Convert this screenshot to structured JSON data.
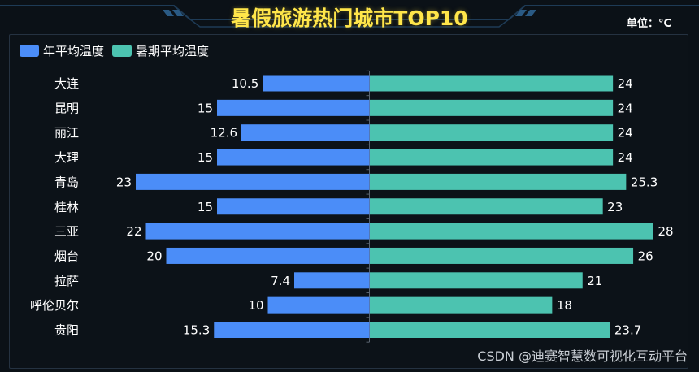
{
  "title": "暑假旅游热门城市TOP10",
  "unit": "单位：°C",
  "watermark": "CSDN @迪赛智慧数可视化互动平台",
  "colors": {
    "left": "#4b8df8",
    "right": "#4cc3b0",
    "title": "#ffe64a"
  },
  "chart_data": {
    "type": "bar",
    "orientation": "horizontal-butterfly",
    "categories": [
      "大连",
      "昆明",
      "丽江",
      "大理",
      "青岛",
      "桂林",
      "三亚",
      "烟台",
      "拉萨",
      "呼伦贝尔",
      "贵阳"
    ],
    "series": [
      {
        "name": "年平均温度",
        "values": [
          10.5,
          15,
          12.6,
          15,
          23,
          15,
          22,
          20,
          7.4,
          10,
          15.3
        ]
      },
      {
        "name": "暑期平均温度",
        "values": [
          24,
          24,
          24,
          24,
          25.3,
          23,
          28,
          26,
          21,
          18,
          23.7
        ]
      }
    ],
    "legend": "top-left",
    "grid": false
  }
}
